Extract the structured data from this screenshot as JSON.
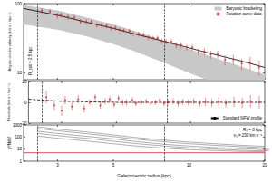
{
  "chart_data": [
    {
      "type": "scatter",
      "ylabel": "Angular circular velocity (km s⁻¹ kpc⁻¹)",
      "xlim": [
        2.2,
        20
      ],
      "xticks": [
        3,
        5,
        10,
        20
      ],
      "ylim": [
        8,
        100
      ],
      "yticks": [
        10,
        100
      ],
      "log": true,
      "grid": false,
      "legend": "upper right",
      "tick_labels": "y",
      "annotations": [
        {
          "x": 2.5,
          "text": "R_cut = 2.5 kpc"
        },
        {
          "x": 8
        }
      ],
      "series": [
        {
          "name": "Baryonic bracketing",
          "type": "band",
          "color": "#c8c8c8",
          "x": [
            2.2,
            3,
            4,
            5,
            6,
            8,
            10,
            13,
            16,
            20
          ],
          "lower": [
            50,
            42,
            33,
            26,
            21,
            14,
            10,
            7,
            5.5,
            4.2
          ],
          "upper": [
            95,
            80,
            62,
            50,
            41,
            29,
            22,
            16,
            12.5,
            9.5
          ]
        },
        {
          "type": "line",
          "color": "#000000",
          "line_style": "solid",
          "x": [
            2.2,
            3,
            4,
            5,
            6,
            8,
            10,
            13,
            16,
            20
          ],
          "values": [
            85,
            68,
            53,
            44,
            37,
            28.5,
            23,
            18,
            15,
            12
          ]
        },
        {
          "name": "Rotation curve data",
          "type": "scatter",
          "color": "#e3242b",
          "marker": "circle",
          "x": [
            2.6,
            2.8,
            3.0,
            3.1,
            3.3,
            3.5,
            3.7,
            3.9,
            4.1,
            4.3,
            4.5,
            4.7,
            4.9,
            5.1,
            5.3,
            5.5,
            5.8,
            6.0,
            6.3,
            6.6,
            6.9,
            7.2,
            7.5,
            7.8,
            8.1,
            8.5,
            8.9,
            9.3,
            9.8,
            10.3,
            10.9,
            11.5,
            12.2,
            13.0,
            13.9,
            15.0,
            16.2,
            17.5,
            19.0
          ],
          "values": [
            79,
            77,
            67,
            69,
            64,
            63,
            55,
            55,
            55,
            49,
            49,
            48,
            44,
            45,
            42,
            41,
            40.5,
            37,
            36.5,
            35.6,
            32.6,
            32,
            32,
            28.8,
            28.4,
            28.2,
            25.3,
            25.3,
            23.5,
            23.3,
            20.2,
            20.4,
            18.4,
            18.5,
            15.5,
            15.7,
            13.6,
            14,
            12.1
          ],
          "errors": [
            8,
            7,
            6,
            6,
            6,
            5,
            5,
            5,
            5,
            4,
            4,
            4,
            4,
            4,
            3,
            3,
            3,
            3,
            3,
            3,
            3,
            2.5,
            2.5,
            2.5,
            2.5,
            2.5,
            2.5,
            2.5,
            2.5,
            2.5,
            2.5,
            2.5,
            2.5,
            2.5,
            2.5,
            2.5,
            2.5,
            3,
            3
          ]
        }
      ]
    },
    {
      "type": "scatter",
      "ylabel": "Residuals (km s⁻¹ kpc⁻¹)",
      "xlim": [
        2.2,
        20
      ],
      "xticks": [
        3,
        5,
        10,
        20
      ],
      "ylim": [
        -20,
        20
      ],
      "yticks": [
        -20,
        0,
        20
      ],
      "log": "x",
      "grid": false,
      "legend": "lower right",
      "tick_labels": "y",
      "annotations": [
        {
          "x": 2.5
        },
        {
          "x": 8
        }
      ],
      "series": [
        {
          "type": "scatter",
          "color": "#e3242b",
          "marker": "circle",
          "x": [
            2.6,
            2.8,
            3.0,
            3.1,
            3.3,
            3.5,
            3.7,
            3.9,
            4.1,
            4.3,
            4.5,
            4.7,
            4.9,
            5.1,
            5.3,
            5.5,
            5.8,
            6.0,
            6.3,
            6.6,
            6.9,
            7.2,
            7.5,
            7.8,
            8.1,
            8.5,
            8.9,
            9.3,
            9.8,
            10.3,
            10.9,
            11.5,
            12.2,
            13.0,
            13.9,
            15.0,
            16.2,
            17.5,
            19.0
          ],
          "values": [
            5,
            -3,
            -8,
            2,
            -4,
            3,
            -6,
            0,
            5,
            -3,
            1,
            3,
            -2,
            4,
            0,
            0,
            2,
            -1,
            0,
            1,
            -1,
            0,
            2,
            -1,
            0,
            1,
            -1,
            0.5,
            0,
            1,
            -1,
            0.5,
            -0.5,
            1,
            -1,
            0.5,
            -0.5,
            1,
            0
          ],
          "errors": [
            6,
            5,
            5,
            4,
            4,
            4,
            4,
            3,
            3,
            3,
            3,
            3,
            3,
            3,
            3,
            3,
            3,
            2.5,
            2.5,
            2.5,
            2.5,
            2.5,
            2.5,
            2.5,
            2.5,
            3,
            3,
            3,
            3,
            3,
            3,
            4,
            4,
            4,
            4,
            5,
            5,
            6,
            6
          ]
        },
        {
          "name": "Standard NFW profile",
          "type": "line",
          "color": "#000000",
          "line_style": "dashed",
          "x": [
            2.2,
            3,
            5,
            8,
            12,
            20
          ],
          "values": [
            3,
            1,
            0,
            0,
            0,
            0
          ]
        }
      ]
    },
    {
      "type": "line",
      "xlabel": "Galactocentric radius (kpc)",
      "ylabel": "χ²/Ndof",
      "xlim": [
        2.2,
        20
      ],
      "xticks": [
        3,
        5,
        10,
        20
      ],
      "ylim": [
        1,
        1000
      ],
      "yticks": [
        1,
        10,
        100,
        1000
      ],
      "log": true,
      "grid": false,
      "annotations": [
        {
          "x": 2.5
        },
        {
          "x": 8
        },
        {
          "text": "R₀ = 8 kpc"
        },
        {
          "text": "v₀ = 230 km s⁻¹"
        }
      ],
      "series": [
        {
          "type": "line",
          "color": "#9a9a9a",
          "line_style": "solid",
          "x": [
            2.5,
            3,
            4,
            5,
            6,
            8,
            10,
            13,
            16,
            20
          ],
          "values": [
            300,
            200,
            110,
            70,
            45,
            25,
            18,
            13,
            11,
            9
          ]
        },
        {
          "type": "line",
          "color": "#9a9a9a",
          "line_style": "solid",
          "x": [
            2.5,
            3,
            4,
            5,
            6,
            8,
            10,
            13,
            16,
            20
          ],
          "values": [
            500,
            330,
            180,
            110,
            70,
            40,
            28,
            20,
            16,
            13
          ]
        },
        {
          "type": "line",
          "color": "#9a9a9a",
          "line_style": "solid",
          "x": [
            2.5,
            3,
            4,
            5,
            6,
            8,
            10,
            13,
            16,
            20
          ],
          "values": [
            200,
            130,
            75,
            45,
            30,
            18,
            13,
            10,
            8,
            7
          ]
        },
        {
          "type": "line",
          "color": "#9a9a9a",
          "line_style": "solid",
          "x": [
            2.5,
            3,
            4,
            5,
            6,
            8,
            10,
            13,
            16,
            20
          ],
          "values": [
            700,
            450,
            250,
            150,
            95,
            55,
            38,
            27,
            21,
            17
          ]
        },
        {
          "type": "line",
          "color": "#9a9a9a",
          "line_style": "solid",
          "x": [
            2.5,
            3,
            4,
            5,
            6,
            8,
            10,
            13,
            16,
            20
          ],
          "values": [
            120,
            80,
            45,
            28,
            19,
            12,
            9,
            7.5,
            6.5,
            6
          ]
        },
        {
          "name": "5σ",
          "type": "line",
          "color": "#e3242b",
          "line_style": "solid",
          "x": [
            2.2,
            20
          ],
          "values": [
            5,
            5
          ]
        }
      ]
    }
  ]
}
